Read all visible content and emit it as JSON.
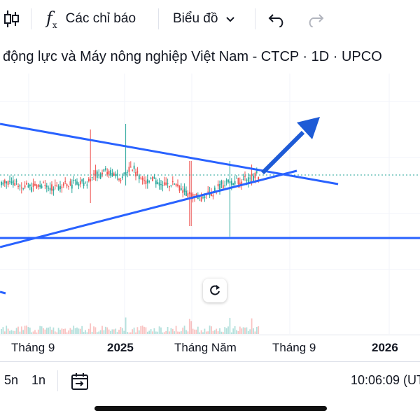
{
  "toolbar": {
    "indicators_label": "Các chỉ báo",
    "chart_type_label": "Biểu đồ"
  },
  "title": "động lực và Máy nông nghiệp Việt Nam - CTCP · 1D · UPCO",
  "xaxis": {
    "labels": [
      "Tháng 9",
      "2025",
      "Tháng Năm",
      "Tháng 9",
      "2026"
    ]
  },
  "bottom": {
    "range_5n": "5n",
    "range_1n": "1n",
    "time": "10:06:09 (UT"
  },
  "colors": {
    "up": "#26a69a",
    "down": "#ef5350",
    "trendline": "#2962ff",
    "arrow": "#1e5bd6"
  }
}
